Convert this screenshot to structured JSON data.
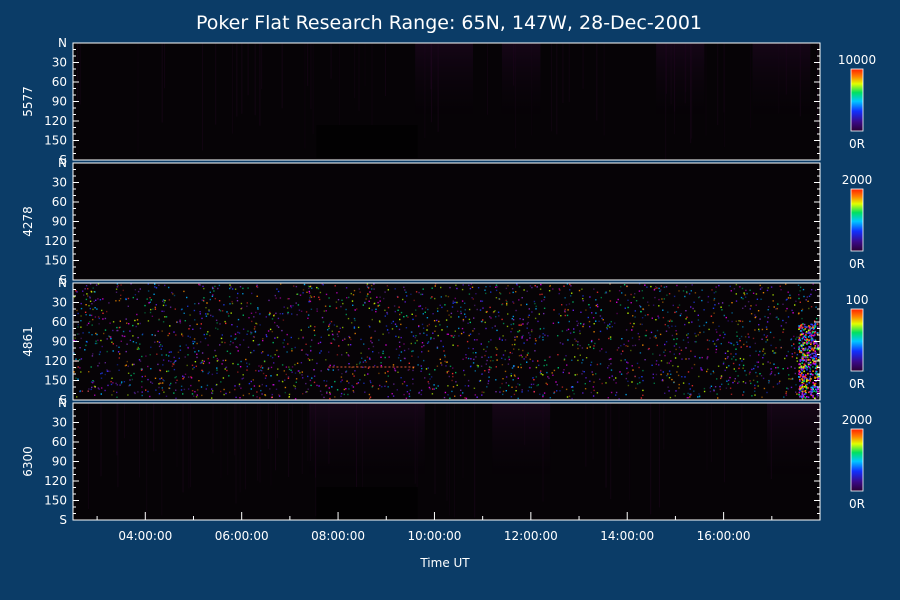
{
  "chart_data": {
    "type": "heatmap",
    "title": "Poker Flat Research Range: 65N, 147W, 28-Dec-2001",
    "xlabel": "Time UT",
    "x_ticks": [
      "04:00:00",
      "06:00:00",
      "08:00:00",
      "10:00:00",
      "12:00:00",
      "14:00:00",
      "16:00:00"
    ],
    "x_range_hours_ut": [
      2.5,
      18.0
    ],
    "x_tick_hours_ut": [
      4,
      6,
      8,
      10,
      12,
      14,
      16
    ],
    "y_ticks": [
      "N",
      "30",
      "60",
      "90",
      "120",
      "150",
      "S"
    ],
    "y_tick_values": [
      0,
      30,
      60,
      90,
      120,
      150,
      180
    ],
    "panels": [
      {
        "label": "5577",
        "colorbar_max": "10000",
        "colorbar_min": "0R"
      },
      {
        "label": "4278",
        "colorbar_max": "2000",
        "colorbar_min": "0R"
      },
      {
        "label": "4861",
        "colorbar_max": "100",
        "colorbar_min": "0R"
      },
      {
        "label": "6300",
        "colorbar_max": "2000",
        "colorbar_min": "0R"
      }
    ],
    "colors": {
      "background": "#0b3c67",
      "panel": "#060306",
      "colorbar": [
        "#2a0033",
        "#3a0a8a",
        "#1030ff",
        "#00c8ff",
        "#00e060",
        "#e0ff00",
        "#ff8000",
        "#ff2000"
      ]
    }
  }
}
